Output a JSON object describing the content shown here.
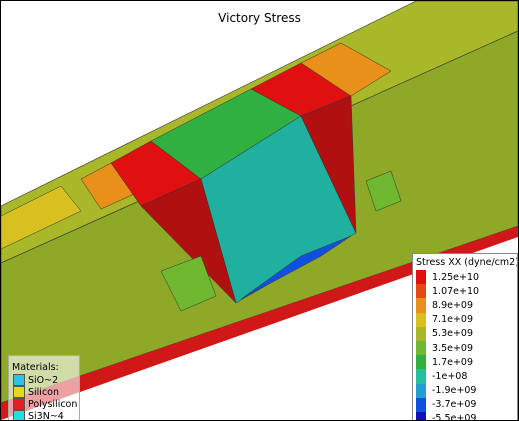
{
  "title": "Victory Stress",
  "colorbar": {
    "title": "Stress XX (dyne/cm2)",
    "levels": [
      {
        "label": "1.25e+10",
        "color": "#e01010"
      },
      {
        "label": "1.07e+10",
        "color": "#e44a10"
      },
      {
        "label": "8.9e+09",
        "color": "#e8901a"
      },
      {
        "label": "7.1e+09",
        "color": "#d8c020"
      },
      {
        "label": "5.3e+09",
        "color": "#a8b828"
      },
      {
        "label": "3.5e+09",
        "color": "#70b830"
      },
      {
        "label": "1.7e+09",
        "color": "#30b040"
      },
      {
        "label": "-1e+08",
        "color": "#20c0a0"
      },
      {
        "label": "-1.9e+09",
        "color": "#20a0d0"
      },
      {
        "label": "-3.7e+09",
        "color": "#1050e0"
      },
      {
        "label": "-5.5e+09",
        "color": "#1010c0"
      }
    ]
  },
  "materials": {
    "title": "Materials:",
    "items": [
      {
        "label": "SiO~2",
        "color": "#30c0e8"
      },
      {
        "label": "Silicon",
        "color": "#e8d820"
      },
      {
        "label": "Polysilicon",
        "color": "#e02020"
      },
      {
        "label": "Si3N~4",
        "color": "#20e0e0"
      }
    ]
  }
}
